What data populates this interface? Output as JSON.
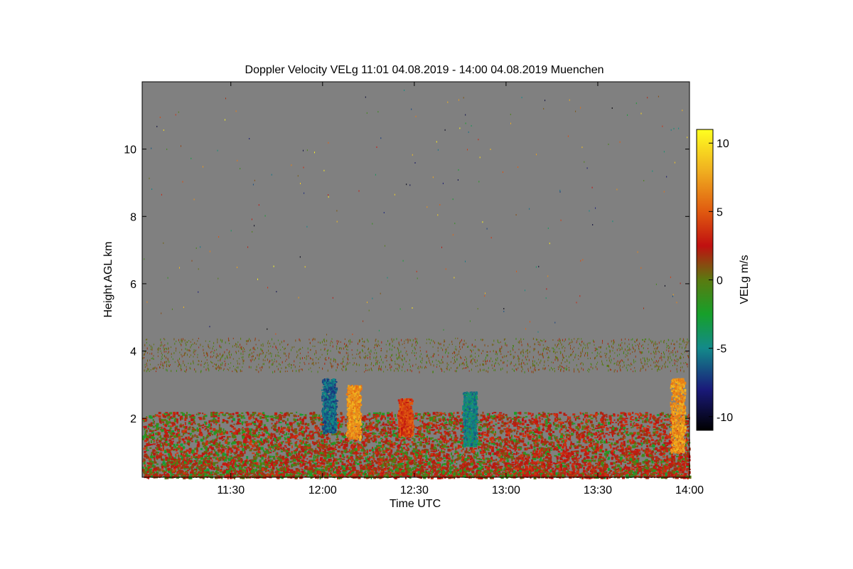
{
  "chart_data": {
    "type": "heatmap",
    "title": "Doppler Velocity VELg   11:01 04.08.2019 - 14:00 04.08.2019 Muenchen",
    "xlabel": "Time UTC",
    "ylabel": "Height AGL km",
    "colorbar_label": "VELg m/s",
    "x_range_minutes_utc": [
      661,
      840
    ],
    "x_ticks": [
      {
        "minute": 690,
        "label": "11:30"
      },
      {
        "minute": 720,
        "label": "12:00"
      },
      {
        "minute": 750,
        "label": "12:30"
      },
      {
        "minute": 780,
        "label": "13:00"
      },
      {
        "minute": 810,
        "label": "13:30"
      },
      {
        "minute": 840,
        "label": "14:00"
      }
    ],
    "ylim": [
      0.25,
      12.0
    ],
    "y_ticks": [
      {
        "value": 2,
        "label": "2"
      },
      {
        "value": 4,
        "label": "4"
      },
      {
        "value": 6,
        "label": "6"
      },
      {
        "value": 8,
        "label": "8"
      },
      {
        "value": 10,
        "label": "10"
      }
    ],
    "clim": [
      -11,
      11
    ],
    "colorbar_ticks": [
      {
        "value": 10,
        "label": "10"
      },
      {
        "value": 5,
        "label": "5"
      },
      {
        "value": 0,
        "label": "0"
      },
      {
        "value": -5,
        "label": "-5"
      },
      {
        "value": -10,
        "label": "-10"
      }
    ],
    "colormap": [
      {
        "value": -11,
        "color": "#000000"
      },
      {
        "value": -8,
        "color": "#1a1a7a"
      },
      {
        "value": -5,
        "color": "#138a8a"
      },
      {
        "value": -2.5,
        "color": "#16a02a"
      },
      {
        "value": 0,
        "color": "#5a7a10"
      },
      {
        "value": 2.5,
        "color": "#c01010"
      },
      {
        "value": 5,
        "color": "#e05a10"
      },
      {
        "value": 8,
        "color": "#f0b020"
      },
      {
        "value": 11,
        "color": "#ffff20"
      }
    ],
    "background_color": "#808080",
    "features": [
      {
        "name": "boundary-layer",
        "minute_range": [
          661,
          840
        ],
        "height_range_km": [
          0.25,
          2.2
        ],
        "dominant_velocity": [
          -3,
          3
        ]
      },
      {
        "name": "aerosol-layer",
        "minute_range": [
          661,
          840
        ],
        "height_range_km": [
          3.4,
          4.4
        ],
        "dominant_velocity": [
          -1,
          2
        ]
      },
      {
        "name": "convective-plume",
        "minute": 722,
        "height_range_km": [
          1.6,
          3.2
        ],
        "dominant_velocity": -6
      },
      {
        "name": "convective-plume",
        "minute": 730,
        "height_range_km": [
          1.4,
          3.0
        ],
        "dominant_velocity": 7
      },
      {
        "name": "convective-plume",
        "minute": 747,
        "height_range_km": [
          1.5,
          2.6
        ],
        "dominant_velocity": 4
      },
      {
        "name": "convective-plume",
        "minute": 768,
        "height_range_km": [
          1.2,
          2.8
        ],
        "dominant_velocity": -5
      },
      {
        "name": "convective-plume",
        "minute": 836,
        "height_range_km": [
          1.0,
          3.2
        ],
        "dominant_velocity": 7
      }
    ]
  }
}
